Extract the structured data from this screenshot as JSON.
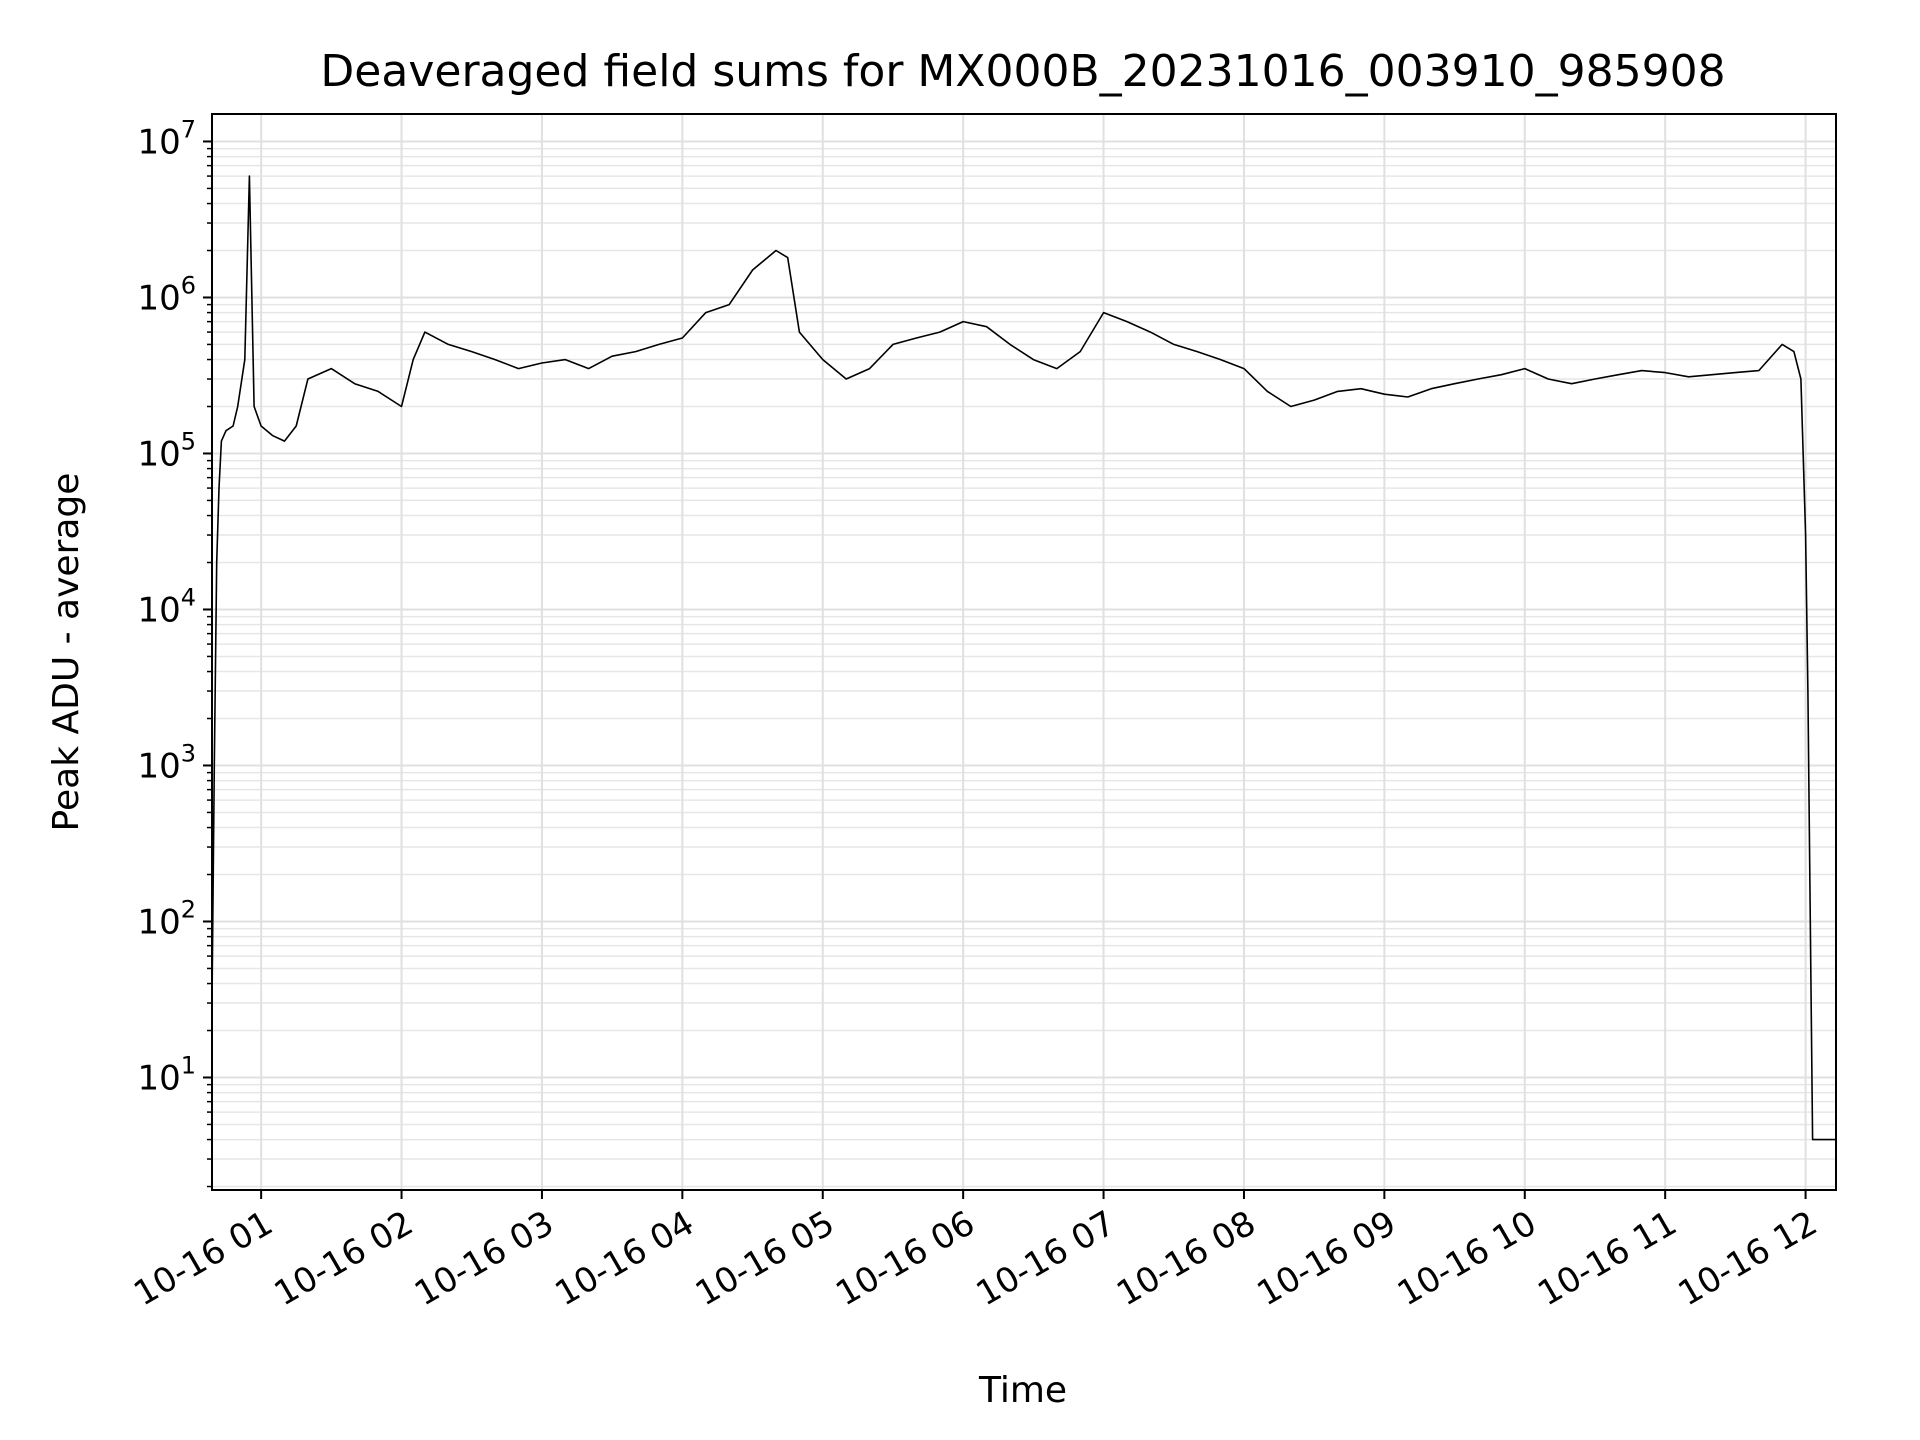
{
  "chart_data": {
    "type": "line",
    "title": "Deaveraged field sums for MX000B_20231016_003910_985908",
    "xlabel": "Time",
    "ylabel": "Peak ADU - average",
    "yscale": "log",
    "ylim": [
      1.9,
      15000000
    ],
    "xlim": [
      "10-16 00:39",
      "10-16 12:13"
    ],
    "grid": true,
    "line_color": "#000000",
    "grid_color": "#e0e0e0",
    "x_ticks": [
      "10-16 01",
      "10-16 02",
      "10-16 03",
      "10-16 04",
      "10-16 05",
      "10-16 06",
      "10-16 07",
      "10-16 08",
      "10-16 09",
      "10-16 10",
      "10-16 11",
      "10-16 12"
    ],
    "y_ticks": [
      {
        "base": "10",
        "exp": "1",
        "value": 10
      },
      {
        "base": "10",
        "exp": "2",
        "value": 100
      },
      {
        "base": "10",
        "exp": "3",
        "value": 1000
      },
      {
        "base": "10",
        "exp": "4",
        "value": 10000
      },
      {
        "base": "10",
        "exp": "5",
        "value": 100000
      },
      {
        "base": "10",
        "exp": "6",
        "value": 1000000
      },
      {
        "base": "10",
        "exp": "7",
        "value": 10000000
      }
    ],
    "series": [
      {
        "x": [
          "00:39",
          "00:40",
          "00:41",
          "00:42",
          "00:43",
          "00:45",
          "00:48",
          "00:50",
          "00:53",
          "00:55",
          "00:57",
          "01:00",
          "01:05",
          "01:10",
          "01:15",
          "01:20",
          "01:30",
          "01:40",
          "01:50",
          "02:00",
          "02:05",
          "02:10",
          "02:20",
          "02:30",
          "02:40",
          "02:50",
          "03:00",
          "03:10",
          "03:20",
          "03:30",
          "03:40",
          "03:50",
          "04:00",
          "04:10",
          "04:20",
          "04:30",
          "04:40",
          "04:45",
          "04:50",
          "05:00",
          "05:10",
          "05:20",
          "05:30",
          "05:40",
          "05:50",
          "06:00",
          "06:10",
          "06:20",
          "06:30",
          "06:40",
          "06:50",
          "07:00",
          "07:10",
          "07:20",
          "07:30",
          "07:40",
          "07:50",
          "08:00",
          "08:10",
          "08:20",
          "08:30",
          "08:40",
          "08:50",
          "09:00",
          "09:10",
          "09:20",
          "09:30",
          "09:40",
          "09:50",
          "10:00",
          "10:10",
          "10:20",
          "10:30",
          "10:40",
          "10:50",
          "11:00",
          "11:10",
          "11:20",
          "11:30",
          "11:40",
          "11:50",
          "11:55",
          "11:58",
          "12:00",
          "12:01",
          "12:02",
          "12:03",
          "12:04",
          "12:05",
          "12:13"
        ],
        "y": [
          30,
          1000,
          20000,
          60000,
          120000,
          140000,
          150000,
          200000,
          400000,
          6000000,
          200000,
          150000,
          130000,
          120000,
          150000,
          300000,
          350000,
          280000,
          250000,
          200000,
          400000,
          600000,
          500000,
          450000,
          400000,
          350000,
          380000,
          400000,
          350000,
          420000,
          450000,
          500000,
          550000,
          800000,
          900000,
          1500000,
          2000000,
          1800000,
          600000,
          400000,
          300000,
          350000,
          500000,
          550000,
          600000,
          700000,
          650000,
          500000,
          400000,
          350000,
          450000,
          800000,
          700000,
          600000,
          500000,
          450000,
          400000,
          350000,
          250000,
          200000,
          220000,
          250000,
          260000,
          240000,
          230000,
          260000,
          280000,
          300000,
          320000,
          350000,
          300000,
          280000,
          300000,
          320000,
          340000,
          330000,
          310000,
          320000,
          330000,
          340000,
          500000,
          450000,
          300000,
          30000,
          3000,
          100,
          4,
          4,
          4,
          4
        ]
      }
    ]
  }
}
